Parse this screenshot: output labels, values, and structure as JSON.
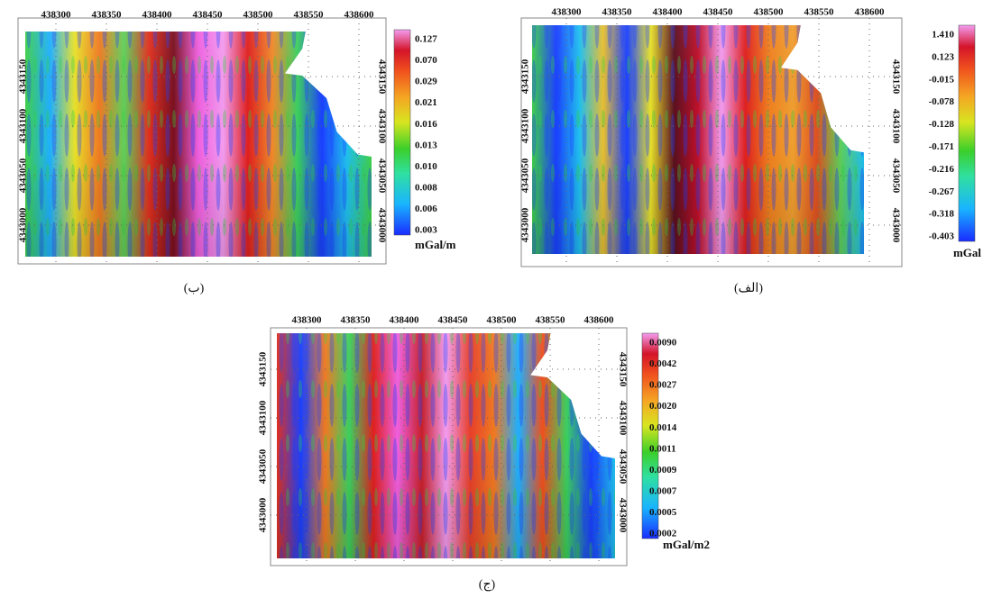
{
  "panels": [
    {
      "caption": "(ب)",
      "unit": "mGal/m",
      "x_ticks": [
        438300,
        438350,
        438400,
        438450,
        438500,
        438550,
        438600
      ],
      "y_ticks": [
        4343150,
        4343100,
        4343050,
        4343000
      ],
      "colorbar_labels": [
        "0.127",
        "0.070",
        "0.029",
        "0.021",
        "0.016",
        "0.013",
        "0.010",
        "0.008",
        "0.006",
        "0.003"
      ]
    },
    {
      "caption": "(الف)",
      "unit": "mGal",
      "x_ticks": [
        438300,
        438350,
        438400,
        438450,
        438500,
        438550,
        438600
      ],
      "y_ticks": [
        4343150,
        4343100,
        4343050,
        4343000
      ],
      "colorbar_labels": [
        "1.410",
        "0.123",
        "-0.015",
        "-0.078",
        "-0.128",
        "-0.171",
        "-0.216",
        "-0.267",
        "-0.318",
        "-0.403"
      ]
    },
    {
      "caption": "(ج)",
      "unit": "mGal/m2",
      "x_ticks": [
        438300,
        438350,
        438400,
        438450,
        438500,
        438550,
        438600
      ],
      "y_ticks": [
        4343150,
        4343100,
        4343050,
        4343000
      ],
      "colorbar_labels": [
        "0.0090",
        "0.0042",
        "0.0027",
        "0.0020",
        "0.0014",
        "0.0011",
        "0.0009",
        "0.0007",
        "0.0005",
        "0.0002"
      ]
    }
  ]
}
